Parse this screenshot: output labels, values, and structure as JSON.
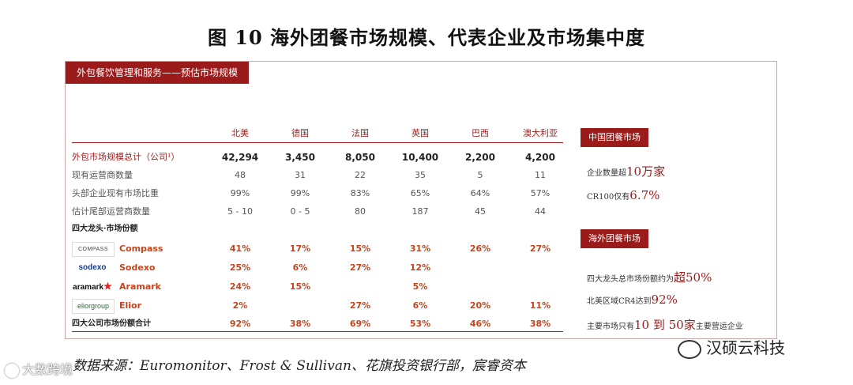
{
  "title": "图 10  海外团餐市场规模、代表企业及市场集中度",
  "panel_tag": "外包餐饮管理和服务——预估市场规模",
  "columns": [
    "北美",
    "德国",
    "法国",
    "英国",
    "巴西",
    "澳大利亚"
  ],
  "rows": [
    {
      "label": "外包市场规模总计（公司¹）",
      "values": [
        "42,294",
        "3,450",
        "8,050",
        "10,400",
        "2,200",
        "4,200"
      ]
    },
    {
      "label": "现有运营商数量",
      "values": [
        "48",
        "31",
        "22",
        "35",
        "5",
        "11"
      ]
    },
    {
      "label": "头部企业现有市场比重",
      "values": [
        "99%",
        "99%",
        "83%",
        "65%",
        "64%",
        "57%"
      ]
    },
    {
      "label": "估计尾部运营商数量",
      "values": [
        "5 - 10",
        "0 - 5",
        "80",
        "187",
        "45",
        "44"
      ]
    }
  ],
  "section_label": "四大龙头·市场份额",
  "companies": [
    {
      "logo": "COMPASS",
      "name": "Compass",
      "values": [
        "41%",
        "17%",
        "15%",
        "31%",
        "26%",
        "27%"
      ]
    },
    {
      "logo": "sodexo",
      "name": "Sodexo",
      "values": [
        "25%",
        "6%",
        "27%",
        "12%",
        "",
        ""
      ]
    },
    {
      "logo": "aramark",
      "name": "Aramark",
      "values": [
        "24%",
        "15%",
        "",
        "5%",
        "",
        ""
      ]
    },
    {
      "logo": "eliorgroup",
      "name": "Elior",
      "values": [
        "2%",
        "",
        "27%",
        "6%",
        "20%",
        "11%"
      ]
    }
  ],
  "total_row": {
    "label": "四大公司市场份额合计",
    "values": [
      "92%",
      "38%",
      "69%",
      "53%",
      "46%",
      "38%"
    ]
  },
  "china": {
    "tag": "中国团餐市场",
    "line1_prefix": "企业数量超",
    "line1_hl": "10万家",
    "line2_prefix": "CR100仅有",
    "line2_hl": "6.7%"
  },
  "overseas": {
    "tag": "海外团餐市场",
    "line1_prefix": "四大龙头总市场份额约为",
    "line1_hl": "超50%",
    "line2_prefix": "北美区域CR4达到",
    "line2_hl": "92%",
    "line3_prefix": "主要市场只有",
    "line3_hl": "10 到 50家",
    "line3_suffix": "主要营运企业"
  },
  "source": "数据来源：Euromonitor、Frost & Sullivan、花旗投资银行部，宸睿资本",
  "watermark_right": "汉硕云科技",
  "watermark_left": "大数跨境"
}
